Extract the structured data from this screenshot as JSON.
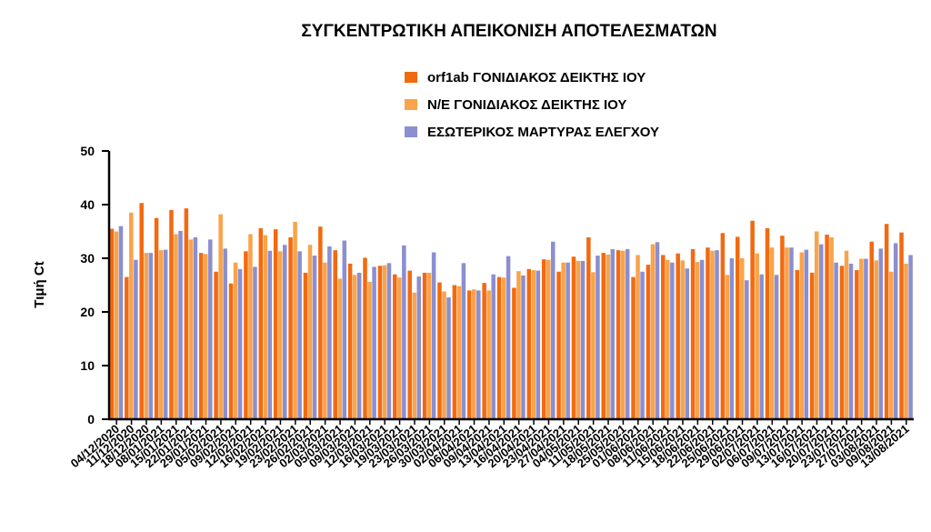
{
  "chart_data": {
    "type": "bar",
    "title": "ΣΥΓΚΕΝΤΡΩΤΙΚΗ ΑΠΕΙΚΟΝΙΣΗ ΑΠΟΤΕΛΕΣΜΑΤΩΝ",
    "y_label": "Τιμή Ct",
    "categories": [
      "04/12/2020",
      "11/12/2020",
      "18/12/2020",
      "08/01/2021",
      "15/01/2021",
      "22/01/2021",
      "29/01/2021",
      "05/02/2021",
      "09/02/2021",
      "12/02/2021",
      "16/02/2021",
      "19/02/2021",
      "23/02/2021",
      "26/02/2021",
      "02/03/2021",
      "05/03/2021",
      "09/03/2021",
      "12/03/2021",
      "16/03/2021",
      "19/03/2021",
      "23/03/2021",
      "26/03/2021",
      "30/03/2021",
      "02/04/2021",
      "06/04/2021",
      "09/04/2021",
      "13/04/2021",
      "16/04/2021",
      "20/04/2021",
      "23/04/2021",
      "27/04/2021",
      "04/05/2021",
      "11/05/2021",
      "18/05/2021",
      "25/05/2021",
      "01/06/2021",
      "08/06/2021",
      "11/06/2021",
      "15/06/2021",
      "18/06/2021",
      "22/06/2021",
      "25/06/2021",
      "29/06/2021",
      "02/07/2021",
      "06/07/2021",
      "09/07/2021",
      "13/07/2021",
      "16/07/2021",
      "20/07/2021",
      "23/07/2021",
      "27/07/2021",
      "03/08/2021",
      "09/08/2021",
      "13/08/2021"
    ],
    "series": [
      {
        "name": "orf1ab ΓΟΝΙΔΙΑΚΟΣ ΔΕΙΚΤΗΣ ΙΟΥ",
        "color": "#f26a10",
        "values": [
          35.5,
          26.5,
          40.3,
          37.5,
          39,
          39.3,
          31,
          27.5,
          25.3,
          31.3,
          35.6,
          35.4,
          33.9,
          27.3,
          35.9,
          31.5,
          29,
          30.1,
          28.6,
          27,
          27.7,
          27.3,
          25.5,
          25,
          24,
          25.4,
          26.5,
          24.5,
          28,
          29.8,
          27.5,
          30.3,
          33.9,
          31,
          31.5,
          26.5,
          28.8,
          30.6,
          30.9,
          31.7,
          32,
          34.7,
          34,
          37,
          35.6,
          34.2,
          27.8,
          27.3,
          34.4,
          28.6,
          27.8,
          33.1,
          36.4,
          34.8
        ]
      },
      {
        "name": "Ν/Ε ΓΟΝΙΔΙΑΚΟΣ ΔΕΙΚΤΗΣ ΙΟΥ",
        "color": "#f9a34a",
        "values": [
          35,
          38.5,
          31,
          31.5,
          34.5,
          33.5,
          30.8,
          38.2,
          29.2,
          34.5,
          34.3,
          31.3,
          36.8,
          32.5,
          29.2,
          26.2,
          26.9,
          25.6,
          28.7,
          26.4,
          23.6,
          27.3,
          23.8,
          24.8,
          24.2,
          24,
          26.4,
          27.6,
          27.8,
          29.7,
          29.2,
          29.5,
          27.4,
          30.7,
          31.4,
          30.6,
          32.6,
          29.7,
          29.6,
          29.3,
          31.4,
          26.9,
          30,
          30.9,
          32,
          32,
          31.1,
          35,
          33.9,
          31.4,
          29.9,
          29.6,
          27.5,
          29
        ]
      },
      {
        "name": "ΕΣΩΤΕΡΙΚΟΣ ΜΑΡΤΥΡΑΣ ΕΛΕΓΧΟΥ",
        "color": "#8b8fd0",
        "values": [
          36,
          29.7,
          31,
          31.6,
          35.1,
          33.9,
          33.5,
          31.8,
          28,
          28.4,
          31.4,
          32.5,
          31.3,
          30.5,
          32.2,
          33.3,
          27.3,
          28.4,
          29.1,
          32.4,
          26.6,
          31.1,
          22.7,
          29.1,
          24,
          27,
          30.4,
          26.8,
          27.7,
          33.1,
          29.2,
          29.5,
          30.5,
          31.7,
          31.7,
          27.5,
          33,
          29.2,
          28.1,
          29.7,
          31.5,
          30,
          25.9,
          27,
          26.9,
          32,
          31.6,
          32.6,
          29.2,
          29,
          29.9,
          31.8,
          32.8,
          30.6
        ]
      }
    ],
    "ylim": [
      0,
      50
    ],
    "yticks": [
      0,
      10,
      20,
      30,
      40,
      50
    ],
    "grid": false,
    "legend": "top"
  }
}
